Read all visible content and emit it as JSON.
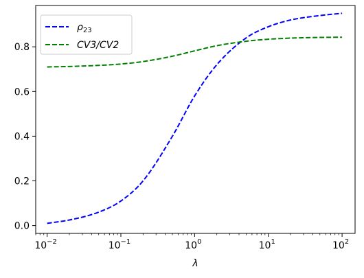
{
  "chart_data": {
    "type": "line",
    "title": "",
    "xlabel": "λ",
    "ylabel": "",
    "x_scale": "log",
    "xlim": [
      0.007,
      150
    ],
    "ylim": [
      -0.035,
      0.985
    ],
    "grid": false,
    "legend_position": "top-left",
    "x_ticks": [
      {
        "value": 0.01,
        "base": "10",
        "exp": "−2"
      },
      {
        "value": 0.1,
        "base": "10",
        "exp": "−1"
      },
      {
        "value": 1,
        "base": "10",
        "exp": "0"
      },
      {
        "value": 10,
        "base": "10",
        "exp": "1"
      },
      {
        "value": 100,
        "base": "10",
        "exp": "2"
      }
    ],
    "y_ticks": [
      {
        "value": 0.0,
        "label": "0.0"
      },
      {
        "value": 0.2,
        "label": "0.2"
      },
      {
        "value": 0.4,
        "label": "0.4"
      },
      {
        "value": 0.6,
        "label": "0.6"
      },
      {
        "value": 0.8,
        "label": "0.8"
      }
    ],
    "x": [
      0.01,
      0.02,
      0.05,
      0.1,
      0.2,
      0.5,
      1,
      2,
      5,
      10,
      20,
      50,
      100
    ],
    "series": [
      {
        "name": "ρ23",
        "name_base": "ρ",
        "name_sub": "23",
        "color": "#0000ff",
        "style": "dashed",
        "values": [
          0.01,
          0.025,
          0.06,
          0.11,
          0.2,
          0.4,
          0.58,
          0.72,
          0.84,
          0.89,
          0.92,
          0.94,
          0.95
        ]
      },
      {
        "name": "CV3/CV2",
        "color": "#008000",
        "style": "dashed",
        "values": [
          0.71,
          0.712,
          0.717,
          0.723,
          0.734,
          0.758,
          0.782,
          0.805,
          0.825,
          0.834,
          0.839,
          0.842,
          0.843
        ]
      }
    ]
  }
}
